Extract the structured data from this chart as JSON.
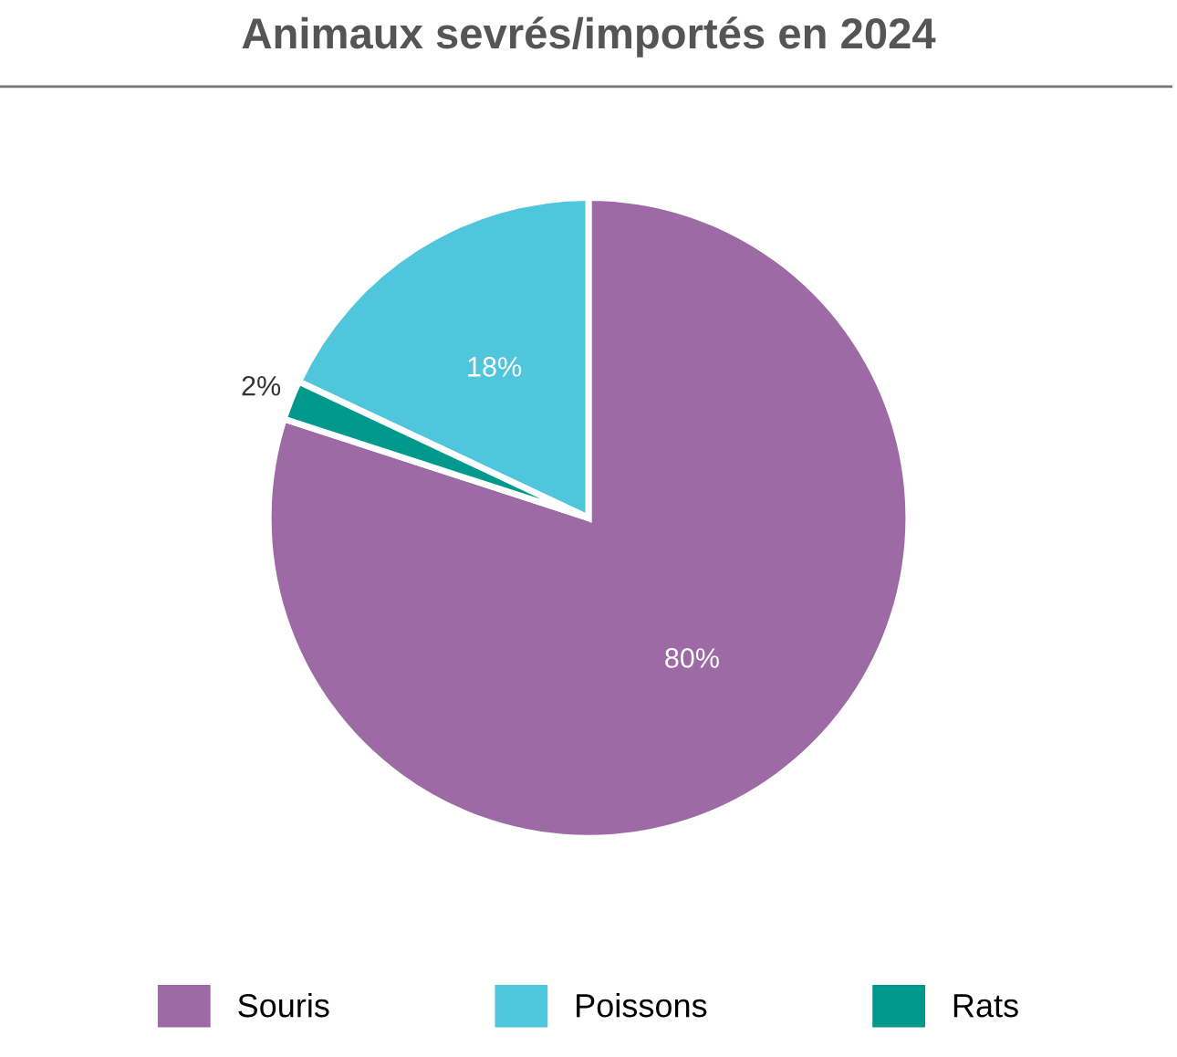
{
  "chart_data": {
    "type": "pie",
    "title": "Animaux sevrés/importés en 2024",
    "categories": [
      "Souris",
      "Poissons",
      "Rats"
    ],
    "values": [
      80,
      18,
      2
    ],
    "colors": [
      "#9e6aa6",
      "#4fc6dc",
      "#00998c"
    ],
    "value_labels": [
      "80%",
      "18%",
      "2%"
    ],
    "legend": "bottom"
  }
}
